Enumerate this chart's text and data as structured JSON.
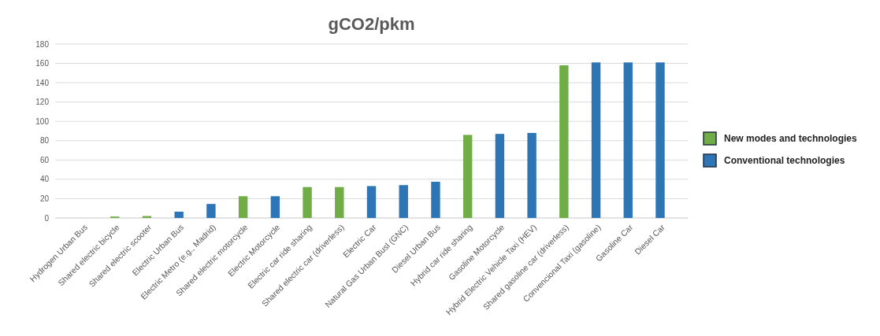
{
  "chart_data": {
    "type": "bar",
    "title": "gCO2/pkm",
    "stacked": true,
    "categories": [
      "Hydrogen Urban Bus",
      "Shared electric bicycle",
      "Shared electric scooter",
      "Electric Urban Bus",
      "Electric Metro (e.g., Madrid)",
      "Shared electric motorcycle",
      "Electric Motorcycle",
      "Electric car ride sharing",
      "Shared electric car (driverless)",
      "Electric Car",
      "Natural Gas Urban Busl (GNC)",
      "Diesel Urban Bus",
      "Hybrid car ride sharing",
      "Gasoline Motorcycle",
      "Hybrid Electric Vehicle Taxi (HEV)",
      "Shared gasoline car (driverless)",
      "Convencional Taxi (gasoline)",
      "Gasoline Car",
      "Diesel Car"
    ],
    "series": [
      {
        "name": "New modes and technologies",
        "color": "#70ad47",
        "values": [
          null,
          1.5,
          2,
          null,
          null,
          22.5,
          null,
          32,
          32,
          null,
          null,
          null,
          86,
          null,
          null,
          158,
          null,
          null,
          null
        ]
      },
      {
        "name": "Conventional technologies",
        "color": "#2e75b6",
        "values": [
          0,
          null,
          null,
          6.5,
          14.5,
          null,
          22.5,
          null,
          null,
          33,
          34,
          37.5,
          null,
          87,
          88,
          null,
          161,
          161,
          161
        ]
      }
    ],
    "ylim": [
      0,
      180
    ],
    "yticks": [
      0,
      20,
      40,
      60,
      80,
      100,
      120,
      140,
      160,
      180
    ],
    "grid": "y",
    "legend": "right"
  }
}
